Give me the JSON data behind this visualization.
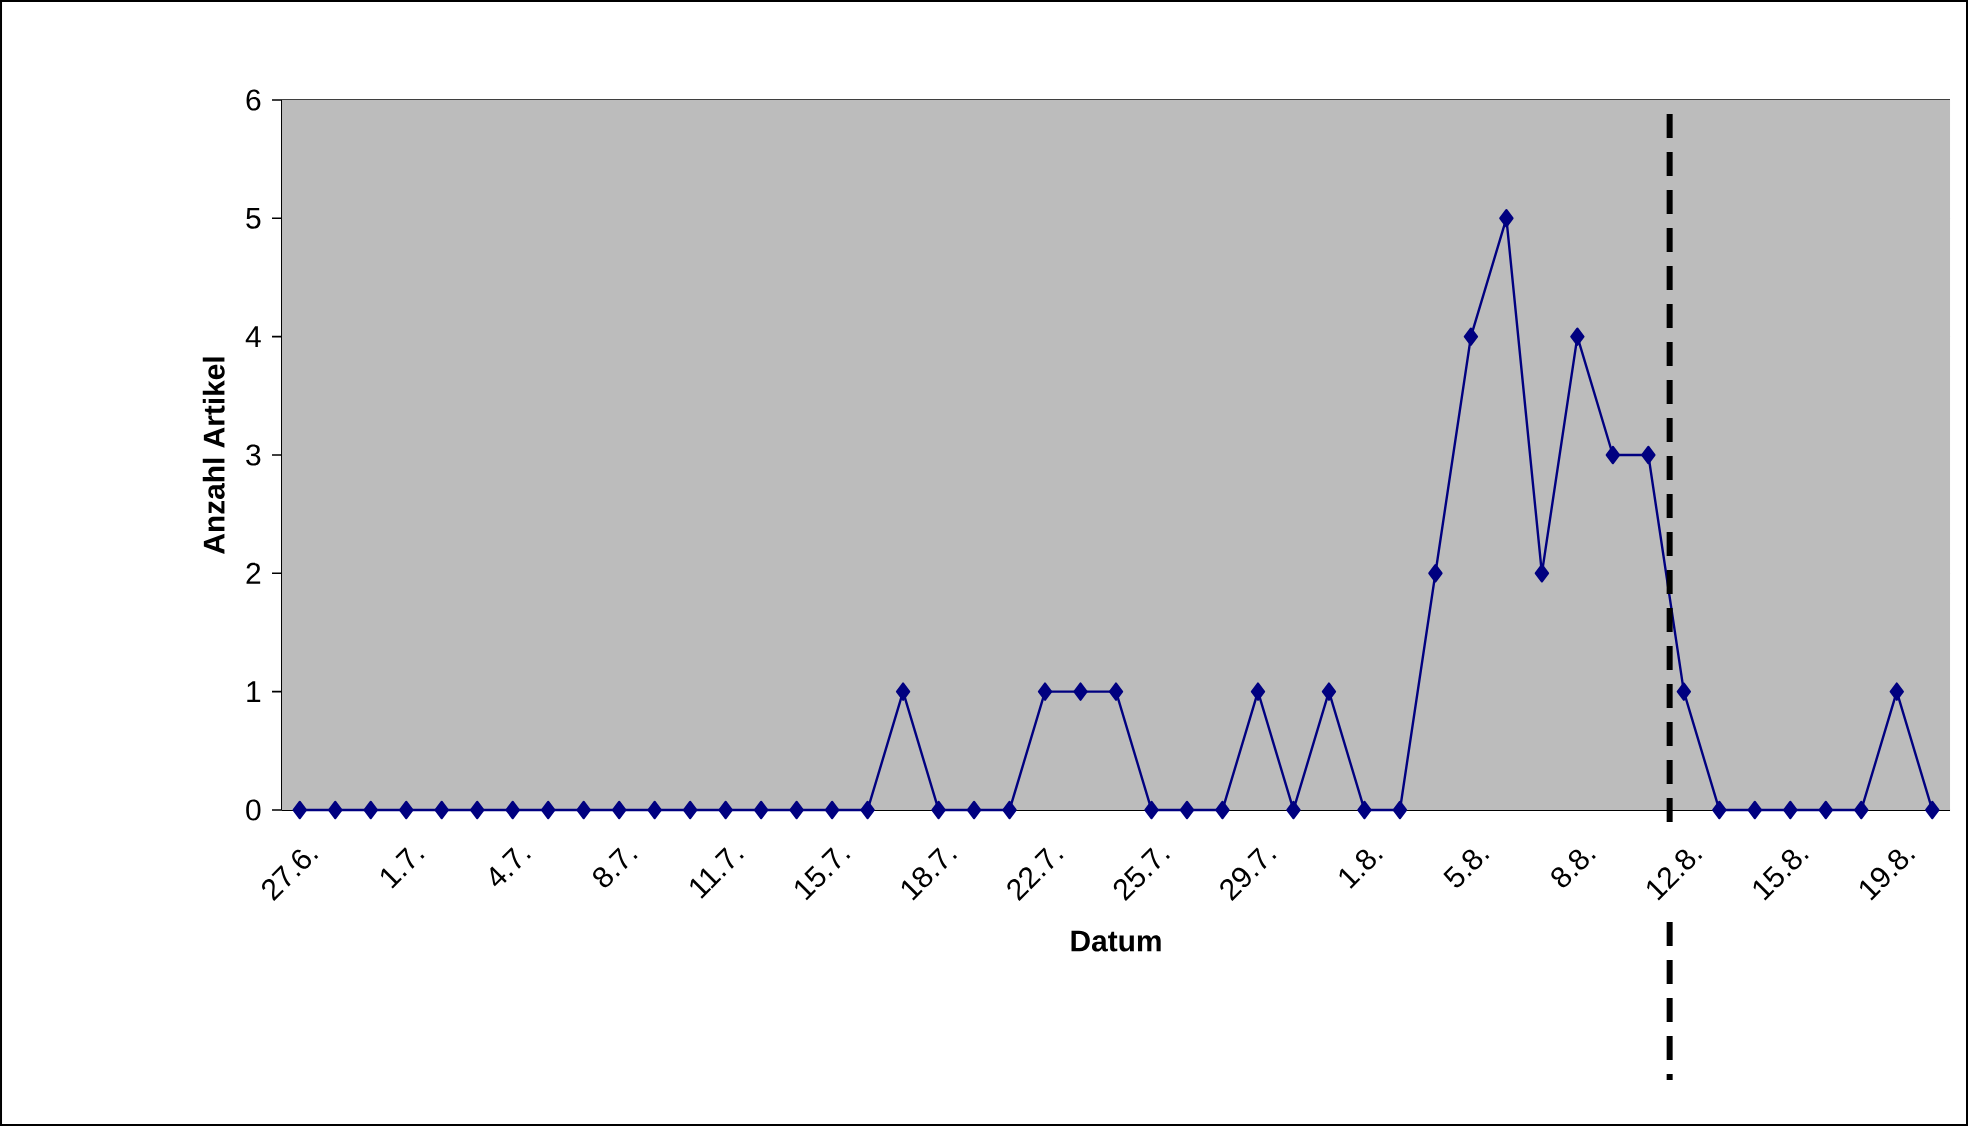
{
  "chart_data": {
    "type": "line",
    "xlabel": "Datum",
    "ylabel": "Anzahl Artikel",
    "categories": [
      "27.6.",
      null,
      null,
      "1.7.",
      null,
      null,
      "4.7.",
      null,
      null,
      "8.7.",
      null,
      null,
      "11.7.",
      null,
      null,
      "15.7.",
      null,
      null,
      "18.7.",
      null,
      null,
      "22.7.",
      null,
      null,
      "25.7.",
      null,
      null,
      "29.7.",
      null,
      null,
      "1.8.",
      null,
      null,
      "5.8.",
      null,
      null,
      "8.8.",
      null,
      null,
      "12.8.",
      null,
      null,
      "15.8.",
      null,
      null,
      "19.8.",
      null
    ],
    "series": [
      {
        "color": "#000080",
        "values": [
          0,
          0,
          0,
          0,
          0,
          0,
          0,
          0,
          0,
          0,
          0,
          0,
          0,
          0,
          0,
          0,
          0,
          1,
          0,
          0,
          0,
          1,
          1,
          1,
          0,
          0,
          0,
          1,
          0,
          1,
          0,
          0,
          2,
          4,
          5,
          2,
          4,
          3,
          3,
          1,
          0,
          0,
          0,
          0,
          0,
          1,
          0
        ]
      }
    ],
    "ylim": [
      0,
      6
    ],
    "yticks": [
      0,
      1,
      2,
      3,
      4,
      5,
      6
    ],
    "grid": "y",
    "marker": "diamond",
    "line_style": "solid"
  }
}
